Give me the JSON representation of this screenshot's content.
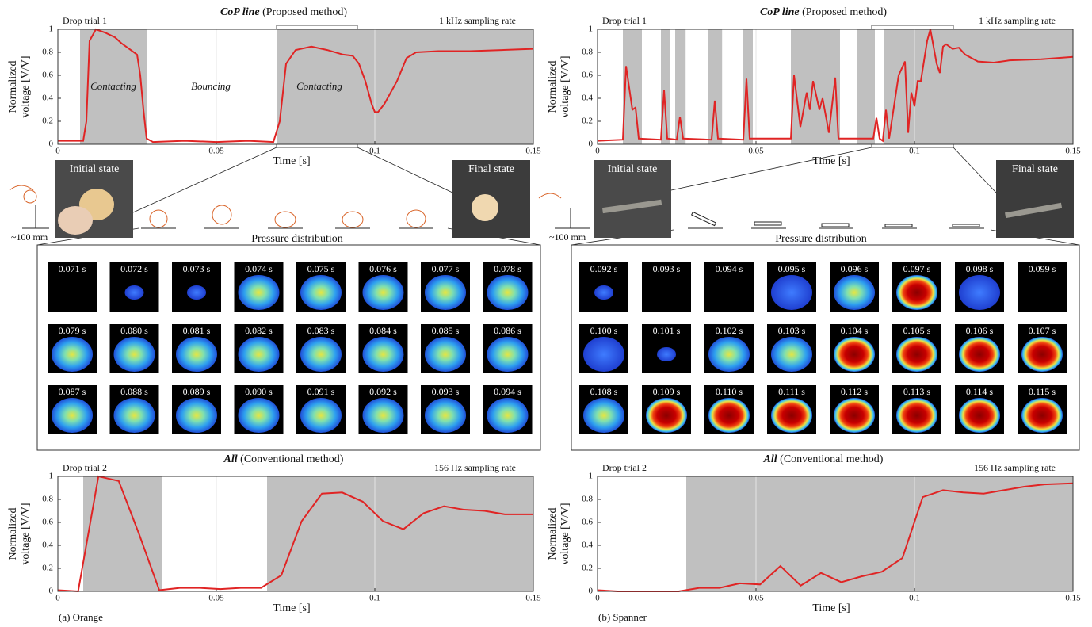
{
  "chart_data": [
    {
      "type": "line",
      "title": "CoP line",
      "subtitle": "(Proposed method)",
      "trial": "Drop trial 1",
      "rate": "1 kHz sampling rate",
      "xlabel": "Time [s]",
      "ylabel": [
        "Normalized",
        "voltage [V/V]"
      ],
      "annotations": [
        "Contacting",
        "Bouncing",
        "Contacting"
      ],
      "xlim": [
        0,
        0.15
      ],
      "xticks": [
        0,
        0.05,
        0.1,
        0.15
      ],
      "ylim": [
        0,
        1
      ],
      "yticks": [
        0,
        0.2,
        0.4,
        0.6,
        0.8,
        1
      ],
      "grid": true,
      "shaded": [
        [
          0.007,
          0.028
        ],
        [
          0.069,
          0.15
        ]
      ],
      "series": [
        {
          "color": "#e02424",
          "x": [
            0,
            0.008,
            0.009,
            0.01,
            0.012,
            0.015,
            0.018,
            0.02,
            0.023,
            0.025,
            0.026,
            0.027,
            0.028,
            0.03,
            0.04,
            0.05,
            0.06,
            0.068,
            0.07,
            0.072,
            0.075,
            0.08,
            0.085,
            0.09,
            0.093,
            0.095,
            0.097,
            0.099,
            0.1,
            0.101,
            0.103,
            0.107,
            0.11,
            0.113,
            0.12,
            0.13,
            0.14,
            0.15
          ],
          "values": [
            0.03,
            0.03,
            0.2,
            0.9,
            1.0,
            0.97,
            0.93,
            0.88,
            0.82,
            0.78,
            0.6,
            0.3,
            0.05,
            0.02,
            0.03,
            0.02,
            0.03,
            0.02,
            0.2,
            0.7,
            0.82,
            0.85,
            0.82,
            0.78,
            0.77,
            0.7,
            0.55,
            0.35,
            0.28,
            0.28,
            0.35,
            0.55,
            0.75,
            0.8,
            0.81,
            0.81,
            0.82,
            0.83
          ]
        }
      ]
    },
    {
      "type": "line",
      "title": "CoP line",
      "subtitle": "(Proposed method)",
      "trial": "Drop trial 1",
      "rate": "1 kHz sampling rate",
      "xlabel": "Time [s]",
      "ylabel": [
        "Normalized",
        "voltage [V/V]"
      ],
      "xlim": [
        0,
        0.15
      ],
      "xticks": [
        0,
        0.05,
        0.1,
        0.15
      ],
      "ylim": [
        0,
        1
      ],
      "yticks": [
        0,
        0.2,
        0.4,
        0.6,
        0.8,
        1
      ],
      "grid": true,
      "shaded": [
        [
          0.008,
          0.014
        ],
        [
          0.02,
          0.023
        ],
        [
          0.0245,
          0.0278
        ],
        [
          0.0348,
          0.0393
        ],
        [
          0.0458,
          0.049
        ],
        [
          0.061,
          0.0765
        ],
        [
          0.082,
          0.0875
        ],
        [
          0.0905,
          0.15
        ]
      ],
      "series": [
        {
          "color": "#e02424",
          "x": [
            0,
            0.008,
            0.009,
            0.011,
            0.012,
            0.013,
            0.02,
            0.021,
            0.022,
            0.025,
            0.026,
            0.027,
            0.036,
            0.037,
            0.038,
            0.046,
            0.047,
            0.048,
            0.061,
            0.062,
            0.064,
            0.066,
            0.067,
            0.068,
            0.07,
            0.071,
            0.073,
            0.075,
            0.076,
            0.087,
            0.088,
            0.089,
            0.09,
            0.091,
            0.092,
            0.095,
            0.097,
            0.098,
            0.099,
            0.1,
            0.101,
            0.102,
            0.104,
            0.105,
            0.107,
            0.108,
            0.109,
            0.11,
            0.112,
            0.114,
            0.116,
            0.12,
            0.125,
            0.13,
            0.14,
            0.15
          ],
          "values": [
            0.03,
            0.04,
            0.68,
            0.3,
            0.32,
            0.05,
            0.04,
            0.47,
            0.05,
            0.04,
            0.24,
            0.05,
            0.04,
            0.38,
            0.05,
            0.04,
            0.57,
            0.05,
            0.05,
            0.6,
            0.15,
            0.45,
            0.3,
            0.55,
            0.3,
            0.4,
            0.1,
            0.58,
            0.05,
            0.05,
            0.23,
            0.05,
            0.03,
            0.3,
            0.05,
            0.6,
            0.72,
            0.1,
            0.45,
            0.33,
            0.55,
            0.55,
            0.9,
            1.0,
            0.7,
            0.62,
            0.85,
            0.87,
            0.83,
            0.84,
            0.78,
            0.72,
            0.71,
            0.73,
            0.74,
            0.76
          ]
        }
      ]
    },
    {
      "type": "line",
      "title": "All",
      "subtitle": "(Conventional method)",
      "trial": "Drop trial 2",
      "rate": "156 Hz sampling rate",
      "xlabel": "Time [s]",
      "ylabel": [
        "Normalized",
        "voltage [V/V]"
      ],
      "xlim": [
        0,
        0.15
      ],
      "xticks": [
        0,
        0.05,
        0.1,
        0.15
      ],
      "ylim": [
        0,
        1
      ],
      "yticks": [
        0,
        0.2,
        0.4,
        0.6,
        0.8,
        1
      ],
      "grid": true,
      "shaded": [
        [
          0.008,
          0.033
        ],
        [
          0.066,
          0.15
        ]
      ],
      "series": [
        {
          "color": "#e02424",
          "x": [
            0,
            0.0064,
            0.0128,
            0.0192,
            0.0256,
            0.032,
            0.0385,
            0.0449,
            0.0513,
            0.0577,
            0.0641,
            0.0705,
            0.0769,
            0.0833,
            0.0897,
            0.0962,
            0.1026,
            0.109,
            0.1154,
            0.1218,
            0.1282,
            0.1346,
            0.141,
            0.1474,
            0.15
          ],
          "values": [
            0.01,
            0.0,
            1.0,
            0.96,
            0.5,
            0.01,
            0.03,
            0.03,
            0.02,
            0.03,
            0.03,
            0.14,
            0.61,
            0.85,
            0.86,
            0.78,
            0.61,
            0.54,
            0.68,
            0.74,
            0.71,
            0.7,
            0.67,
            0.67,
            0.67
          ]
        }
      ]
    },
    {
      "type": "line",
      "title": "All",
      "subtitle": "(Conventional method)",
      "trial": "Drop trial 2",
      "rate": "156 Hz sampling rate",
      "xlabel": "Time [s]",
      "ylabel": [
        "Normalized",
        "voltage [V/V]"
      ],
      "xlim": [
        0,
        0.15
      ],
      "xticks": [
        0,
        0.05,
        0.1,
        0.15
      ],
      "ylim": [
        0,
        1
      ],
      "yticks": [
        0,
        0.2,
        0.4,
        0.6,
        0.8,
        1
      ],
      "grid": true,
      "shaded": [
        [
          0.028,
          0.15
        ]
      ],
      "series": [
        {
          "color": "#e02424",
          "x": [
            0,
            0.0064,
            0.0128,
            0.0192,
            0.0256,
            0.0321,
            0.0385,
            0.0449,
            0.0513,
            0.0577,
            0.0641,
            0.0705,
            0.0769,
            0.0833,
            0.0897,
            0.0962,
            0.1026,
            0.109,
            0.1154,
            0.1218,
            0.1282,
            0.1346,
            0.141,
            0.15
          ],
          "values": [
            0.01,
            0.0,
            0.0,
            0.0,
            0.0,
            0.03,
            0.03,
            0.07,
            0.06,
            0.22,
            0.05,
            0.16,
            0.08,
            0.13,
            0.17,
            0.29,
            0.82,
            0.88,
            0.86,
            0.85,
            0.88,
            0.91,
            0.93,
            0.94
          ]
        }
      ]
    }
  ],
  "panels": [
    {
      "initial": "Initial state",
      "final": "Final state",
      "height": "~100 mm",
      "pressure": "Pressure distribution",
      "caption": "(a) Orange",
      "frames": [
        "0.071 s",
        "0.072 s",
        "0.073 s",
        "0.074 s",
        "0.075 s",
        "0.076 s",
        "0.077 s",
        "0.078 s",
        "0.079 s",
        "0.080 s",
        "0.081 s",
        "0.082 s",
        "0.083 s",
        "0.084 s",
        "0.085 s",
        "0.086 s",
        "0.087 s",
        "0.088 s",
        "0.089 s",
        "0.090 s",
        "0.091 s",
        "0.092 s",
        "0.093 s",
        "0.094 s"
      ]
    },
    {
      "initial": "Initial state",
      "final": "Final state",
      "height": "~100 mm",
      "pressure": "Pressure distribution",
      "caption": "(b) Spanner",
      "frames": [
        "0.092 s",
        "0.093 s",
        "0.094 s",
        "0.095 s",
        "0.096 s",
        "0.097 s",
        "0.098 s",
        "0.099 s",
        "0.100 s",
        "0.101 s",
        "0.102 s",
        "0.103 s",
        "0.104 s",
        "0.105 s",
        "0.106 s",
        "0.107 s",
        "0.108 s",
        "0.109 s",
        "0.110 s",
        "0.111 s",
        "0.112 s",
        "0.113 s",
        "0.114 s",
        "0.115 s"
      ]
    }
  ]
}
